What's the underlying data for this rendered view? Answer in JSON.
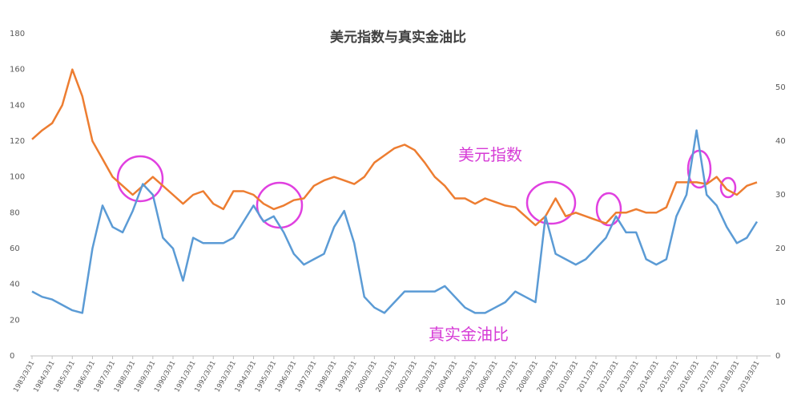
{
  "chart_data": {
    "type": "line",
    "title": "美元指数与真实金油比",
    "categories": [
      "1983/3/31",
      null,
      "1984/3/31",
      null,
      "1985/3/31",
      null,
      "1986/3/31",
      null,
      "1987/3/31",
      null,
      "1988/3/31",
      null,
      "1989/3/31",
      null,
      "1990/3/31",
      null,
      "1991/3/31",
      null,
      "1992/3/31",
      null,
      "1993/3/31",
      null,
      "1994/3/31",
      null,
      "1995/3/31",
      null,
      "1996/3/31",
      null,
      "1997/3/31",
      null,
      "1998/3/31",
      null,
      "1999/3/31",
      null,
      "2000/3/31",
      null,
      "2001/3/31",
      null,
      "2002/3/31",
      null,
      "2003/3/31",
      null,
      "2004/3/31",
      null,
      "2005/3/31",
      null,
      "2006/3/31",
      null,
      "2007/3/31",
      null,
      "2008/3/31",
      null,
      "2009/3/31",
      null,
      "2010/3/31",
      null,
      "2011/3/31",
      null,
      "2012/3/31",
      null,
      "2013/3/31",
      null,
      "2014/3/31",
      null,
      "2015/3/31",
      null,
      "2016/3/31",
      null,
      "2017/3/31",
      null,
      "2018/3/31",
      null,
      "2019/3/31"
    ],
    "series": [
      {
        "name": "美元指数",
        "color": "#ed7d31",
        "axis": "y",
        "values": [
          121,
          126,
          130,
          140,
          160,
          145,
          120,
          110,
          100,
          95,
          90,
          95,
          100,
          95,
          90,
          85,
          90,
          92,
          85,
          82,
          92,
          92,
          90,
          85,
          82,
          84,
          87,
          88,
          95,
          98,
          100,
          98,
          96,
          100,
          108,
          112,
          116,
          118,
          115,
          108,
          100,
          95,
          88,
          88,
          85,
          88,
          86,
          84,
          83,
          78,
          73,
          78,
          88,
          78,
          80,
          78,
          76,
          74,
          80,
          80,
          82,
          80,
          80,
          83,
          97,
          97,
          97,
          96,
          100,
          93,
          90,
          95,
          97
        ]
      },
      {
        "name": "真实金油比",
        "color": "#5b9bd5",
        "axis": "y2",
        "values": [
          12,
          11,
          10.5,
          9.5,
          8.5,
          8,
          20,
          28,
          24,
          23,
          27,
          32,
          30,
          22,
          20,
          14,
          22,
          21,
          21,
          21,
          22,
          25,
          28,
          25,
          26,
          23,
          19,
          17,
          18,
          19,
          24,
          27,
          21,
          11,
          9,
          8,
          10,
          12,
          12,
          12,
          12,
          13,
          11,
          9,
          8,
          8,
          9,
          10,
          12,
          11,
          10,
          26,
          19,
          18,
          17,
          18,
          20,
          22,
          26,
          23,
          23,
          18,
          17,
          18,
          26,
          30,
          42,
          30,
          28,
          24,
          21,
          22,
          25
        ]
      }
    ],
    "ylim": [
      0,
      180
    ],
    "yticks": [
      0,
      20,
      40,
      60,
      80,
      100,
      120,
      140,
      160,
      180
    ],
    "y2lim": [
      0,
      60
    ],
    "y2ticks": [
      0,
      10,
      20,
      30,
      40,
      50,
      60
    ],
    "annotations": [
      "美元指数",
      "真实金油比"
    ]
  }
}
